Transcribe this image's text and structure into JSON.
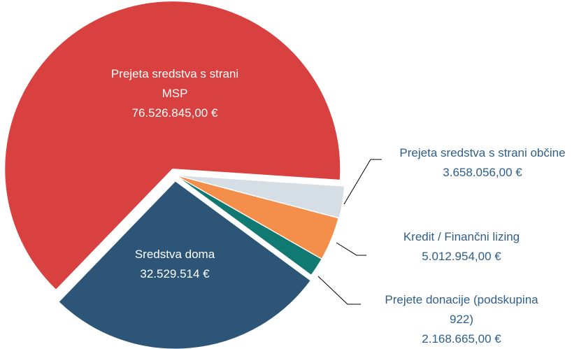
{
  "chart_data": {
    "type": "pie",
    "categories": [
      "Prejeta sredstva s strani MSP",
      "Prejeta sredstva s strani občine",
      "Kredit / Finančni lizing",
      "Prejete donacije (podskupina 922)",
      "Sredstva doma"
    ],
    "values": [
      76526845,
      3658056,
      5012954,
      2168665,
      32529514
    ],
    "value_labels": [
      "76.526.845,00 €",
      "3.658.056,00 €",
      "5.012.954,00 €",
      "2.168.665,00 €",
      "32.529.514 €"
    ],
    "colors": [
      "#d94141",
      "#d6dee5",
      "#f48e4b",
      "#107a72",
      "#2c5578"
    ]
  }
}
